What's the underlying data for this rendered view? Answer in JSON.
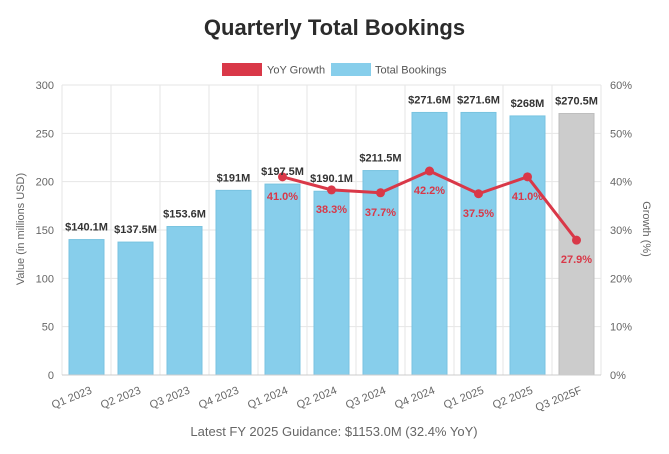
{
  "chart_data": {
    "type": "bar",
    "title": "Quarterly Total Bookings",
    "categories": [
      "Q1 2023",
      "Q2 2023",
      "Q3 2023",
      "Q4 2023",
      "Q1 2024",
      "Q2 2024",
      "Q3 2024",
      "Q4 2024",
      "Q1 2025",
      "Q2 2025",
      "Q3 2025F"
    ],
    "series": [
      {
        "name": "Total Bookings",
        "type": "bar",
        "axis": "left",
        "color": "#87ceeb",
        "forecast_color": "#cccccc",
        "values": [
          140.1,
          137.5,
          153.6,
          191,
          197.5,
          190.1,
          211.5,
          271.6,
          271.6,
          268,
          270.5
        ],
        "labels": [
          "$140.1M",
          "$137.5M",
          "$153.6M",
          "$191M",
          "$197.5M",
          "$190.1M",
          "$211.5M",
          "$271.6M",
          "$271.6M",
          "$268M",
          "$270.5M"
        ],
        "forecast_index": 10
      },
      {
        "name": "YoY Growth",
        "type": "line",
        "axis": "right",
        "color": "#d93848",
        "values": [
          null,
          null,
          null,
          null,
          41.0,
          38.3,
          37.7,
          42.2,
          37.5,
          41.0,
          27.9
        ],
        "labels": [
          "",
          "",
          "",
          "",
          "41.0%",
          "38.3%",
          "37.7%",
          "42.2%",
          "37.5%",
          "41.0%",
          "27.9%"
        ]
      }
    ],
    "ylabel": "Value (in millions USD)",
    "y2label": "Growth (%)",
    "ylim": [
      0,
      300
    ],
    "y2lim": [
      0,
      60
    ],
    "yticks": [
      "0",
      "50",
      "100",
      "150",
      "200",
      "250",
      "300"
    ],
    "y2ticks": [
      "0%",
      "10%",
      "20%",
      "30%",
      "40%",
      "50%",
      "60%"
    ],
    "legend": [
      "YoY Growth",
      "Total Bookings"
    ],
    "legend_position": "top-center",
    "grid": true,
    "footer": "Latest FY 2025 Guidance: $1153.0M (32.4% YoY)"
  }
}
